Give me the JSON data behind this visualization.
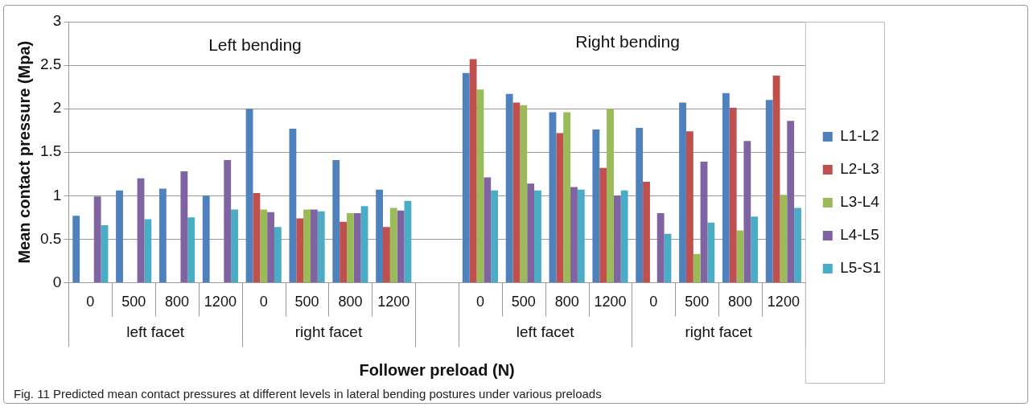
{
  "chart_data": {
    "type": "bar",
    "xlabel": "Follower preload (N)",
    "ylabel": "Mean contact pressure (Mpa)",
    "categories": [
      "0",
      "500",
      "800",
      "1200",
      "0",
      "500",
      "800",
      "1200",
      null,
      "0",
      "500",
      "800",
      "1200",
      "0",
      "500",
      "800",
      "1200"
    ],
    "series": [
      {
        "name": "L1-L2",
        "color": "#4f81bd",
        "values": [
          0.77,
          1.06,
          1.08,
          1.0,
          2.0,
          1.77,
          1.41,
          1.07,
          null,
          2.41,
          2.17,
          1.96,
          1.76,
          1.78,
          2.07,
          2.18,
          2.1
        ]
      },
      {
        "name": "L2-L3",
        "color": "#c0504d",
        "values": [
          null,
          null,
          null,
          null,
          1.03,
          0.74,
          0.7,
          0.64,
          null,
          2.57,
          2.07,
          1.72,
          1.32,
          1.16,
          1.74,
          2.01,
          2.38
        ]
      },
      {
        "name": "L3-L4",
        "color": "#9bbb59",
        "values": [
          null,
          null,
          null,
          null,
          0.84,
          0.84,
          0.8,
          0.86,
          null,
          2.22,
          2.04,
          1.96,
          2.0,
          null,
          0.33,
          0.6,
          1.01
        ]
      },
      {
        "name": "L4-L5",
        "color": "#8064a2",
        "values": [
          0.99,
          1.2,
          1.28,
          1.41,
          0.81,
          0.84,
          0.8,
          0.83,
          null,
          1.21,
          1.14,
          1.1,
          1.0,
          0.8,
          1.39,
          1.63,
          1.86
        ]
      },
      {
        "name": "L5-S1",
        "color": "#4bacc6",
        "values": [
          0.66,
          0.73,
          0.75,
          0.84,
          0.64,
          0.82,
          0.88,
          0.94,
          null,
          1.06,
          1.06,
          1.07,
          1.06,
          0.56,
          0.69,
          0.76,
          0.86
        ]
      }
    ],
    "ylim": [
      0,
      3
    ],
    "yticks": [
      0,
      0.5,
      1,
      1.5,
      2,
      2.5,
      3
    ],
    "grid": "y",
    "legend": "right",
    "annotations": [
      "Left bending",
      "Right bending",
      "left facet",
      "right facet",
      "left facet",
      "right facet",
      "Fig. 11 Predicted mean contact pressures at different levels in lateral bending postures under various preloads"
    ]
  }
}
